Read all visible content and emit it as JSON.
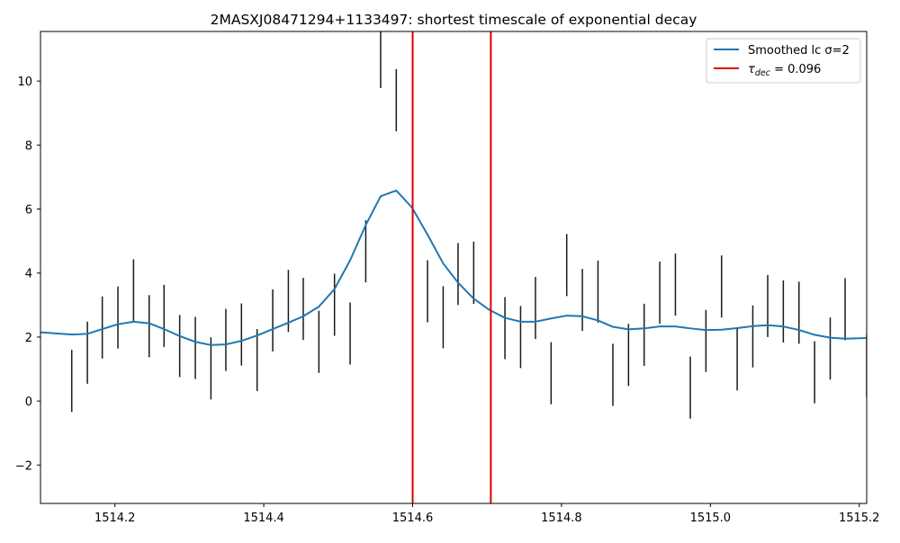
{
  "chart_data": {
    "type": "line",
    "title": "2MASXJ08471294+1133497: shortest timescale of exponential decay",
    "xlabel": "",
    "ylabel": "",
    "xlim": [
      1514.1,
      1515.21
    ],
    "ylim": [
      -3.2,
      11.55
    ],
    "grid": false,
    "legend_position": "top-right",
    "xticks": [
      1514.2,
      1514.4,
      1514.6,
      1514.8,
      1515.0,
      1515.2
    ],
    "xtick_labels": [
      "1514.2",
      "1514.4",
      "1514.6",
      "1514.8",
      "1515.0",
      "1515.2"
    ],
    "yticks": [
      -2,
      0,
      2,
      4,
      6,
      8,
      10
    ],
    "ytick_labels": [
      "−2",
      "0",
      "2",
      "4",
      "6",
      "8",
      "10"
    ],
    "series": [
      {
        "name": "Smoothed lc σ=2",
        "kind": "line",
        "color": "#1f77b4",
        "x": [
          1514.1,
          1514.142,
          1514.163,
          1514.183,
          1514.204,
          1514.225,
          1514.246,
          1514.266,
          1514.287,
          1514.308,
          1514.329,
          1514.349,
          1514.37,
          1514.391,
          1514.412,
          1514.433,
          1514.453,
          1514.474,
          1514.495,
          1514.516,
          1514.537,
          1514.557,
          1514.578,
          1514.599,
          1514.62,
          1514.641,
          1514.661,
          1514.682,
          1514.703,
          1514.724,
          1514.745,
          1514.765,
          1514.786,
          1514.807,
          1514.828,
          1514.849,
          1514.869,
          1514.89,
          1514.911,
          1514.932,
          1514.953,
          1514.973,
          1514.994,
          1515.015,
          1515.036,
          1515.057,
          1515.077,
          1515.098,
          1515.119,
          1515.14,
          1515.161,
          1515.181,
          1515.21
        ],
        "y": [
          2.15,
          2.08,
          2.1,
          2.25,
          2.4,
          2.48,
          2.43,
          2.25,
          2.03,
          1.85,
          1.75,
          1.77,
          1.88,
          2.05,
          2.25,
          2.45,
          2.65,
          2.95,
          3.5,
          4.4,
          5.5,
          6.4,
          6.58,
          6.05,
          5.2,
          4.3,
          3.7,
          3.2,
          2.85,
          2.6,
          2.48,
          2.48,
          2.58,
          2.67,
          2.65,
          2.52,
          2.32,
          2.24,
          2.27,
          2.33,
          2.33,
          2.27,
          2.22,
          2.23,
          2.28,
          2.34,
          2.37,
          2.33,
          2.22,
          2.07,
          1.98,
          1.95,
          1.97
        ]
      },
      {
        "name": "τdec = 0.096",
        "label_main": "τ",
        "label_sub": "dec",
        "label_rest": " = 0.096",
        "kind": "vline",
        "color": "#e00000",
        "x": [
          1514.6,
          1514.705
        ]
      },
      {
        "name": "",
        "kind": "errorbar",
        "color": "#1a1a1a",
        "x": [
          1514.142,
          1514.163,
          1514.183,
          1514.204,
          1514.225,
          1514.246,
          1514.266,
          1514.287,
          1514.308,
          1514.329,
          1514.349,
          1514.37,
          1514.391,
          1514.412,
          1514.433,
          1514.453,
          1514.474,
          1514.495,
          1514.516,
          1514.537,
          1514.557,
          1514.578,
          1514.62,
          1514.641,
          1514.661,
          1514.682,
          1514.724,
          1514.745,
          1514.765,
          1514.786,
          1514.807,
          1514.828,
          1514.849,
          1514.869,
          1514.89,
          1514.911,
          1514.932,
          1514.953,
          1514.973,
          1514.994,
          1515.015,
          1515.036,
          1515.057,
          1515.077,
          1515.098,
          1515.119,
          1515.14,
          1515.161,
          1515.181,
          1515.21
        ],
        "y": [
          0.63,
          1.51,
          2.3,
          2.61,
          3.46,
          2.34,
          2.66,
          1.72,
          1.66,
          1.02,
          1.91,
          2.08,
          1.28,
          2.52,
          3.13,
          2.88,
          1.85,
          3.01,
          2.11,
          4.68,
          10.75,
          9.4,
          3.43,
          2.62,
          3.97,
          4.01,
          2.28,
          2.0,
          2.91,
          0.87,
          4.25,
          3.16,
          3.42,
          0.82,
          1.44,
          2.07,
          3.39,
          3.64,
          0.42,
          1.88,
          3.58,
          1.3,
          2.02,
          2.97,
          2.8,
          2.76,
          0.9,
          1.64,
          2.87,
          1.1
        ],
        "err": [
          0.97,
          0.97,
          0.97,
          0.97,
          0.97,
          0.97,
          0.97,
          0.97,
          0.97,
          0.97,
          0.97,
          0.97,
          0.97,
          0.97,
          0.97,
          0.97,
          0.97,
          0.97,
          0.97,
          0.97,
          0.97,
          0.97,
          0.97,
          0.97,
          0.97,
          0.97,
          0.97,
          0.97,
          0.97,
          0.97,
          0.97,
          0.97,
          0.97,
          0.97,
          0.97,
          0.97,
          0.97,
          0.97,
          0.97,
          0.97,
          0.97,
          0.97,
          0.97,
          0.97,
          0.97,
          0.97,
          0.97,
          0.97,
          0.97,
          0.97
        ]
      }
    ]
  }
}
